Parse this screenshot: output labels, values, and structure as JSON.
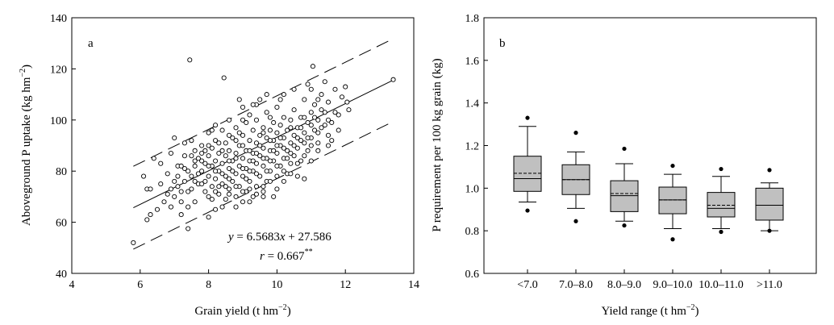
{
  "chart_data": [
    {
      "panel": "a",
      "type": "scatter",
      "xlabel": "Grain yield (t hm",
      "xlabel_sup": "−2",
      "xlabel_end": ")",
      "ylabel": "Aboveground P uptake (kg hm",
      "ylabel_sup": "−2",
      "ylabel_end": ")",
      "xlim": [
        4,
        14
      ],
      "ylim": [
        40,
        140
      ],
      "xticks": [
        "4",
        "6",
        "8",
        "10",
        "12",
        "14"
      ],
      "yticks": [
        "40",
        "60",
        "80",
        "100",
        "120",
        "140"
      ],
      "equation_y": "y",
      "equation_eq": " = 6.5683",
      "equation_x": "x",
      "equation_rest": " + 27.586",
      "r_label": "r",
      "r_value": " = 0.667",
      "r_sig": "**",
      "regression": {
        "slope": 6.5683,
        "intercept": 27.586,
        "x_range": [
          5.8,
          13.4
        ]
      },
      "prediction_band": {
        "offset": 16.2,
        "x_range": [
          5.8,
          13.4
        ]
      },
      "points": [
        [
          5.8,
          52
        ],
        [
          7.45,
          123.5
        ],
        [
          8.45,
          116.5
        ],
        [
          13.4,
          115.8
        ],
        [
          7.4,
          57.5
        ],
        [
          11.05,
          121
        ],
        [
          11.4,
          115
        ],
        [
          12.05,
          107
        ],
        [
          12.1,
          104
        ],
        [
          10.8,
          77
        ],
        [
          6.1,
          78
        ],
        [
          6.2,
          61
        ],
        [
          6.3,
          63
        ],
        [
          6.2,
          73
        ],
        [
          6.3,
          73
        ],
        [
          6.6,
          75
        ],
        [
          6.9,
          73
        ],
        [
          7.0,
          70
        ],
        [
          7.0,
          93
        ],
        [
          6.4,
          85
        ],
        [
          6.5,
          65
        ],
        [
          6.7,
          68
        ],
        [
          6.9,
          66
        ],
        [
          6.8,
          79
        ],
        [
          7.1,
          74
        ],
        [
          7.2,
          68
        ],
        [
          7.2,
          72
        ],
        [
          7.3,
          76
        ],
        [
          7.3,
          81
        ],
        [
          7.4,
          72
        ],
        [
          7.5,
          78
        ],
        [
          7.6,
          82
        ],
        [
          7.6,
          88
        ],
        [
          7.7,
          75
        ],
        [
          7.7,
          85
        ],
        [
          7.8,
          80
        ],
        [
          7.8,
          90
        ],
        [
          7.9,
          72
        ],
        [
          7.9,
          83
        ],
        [
          8.0,
          70
        ],
        [
          8.0,
          78
        ],
        [
          8.0,
          86
        ],
        [
          8.0,
          95
        ],
        [
          8.1,
          74
        ],
        [
          8.1,
          82
        ],
        [
          8.1,
          89
        ],
        [
          8.2,
          65
        ],
        [
          8.2,
          77
        ],
        [
          8.2,
          84
        ],
        [
          8.2,
          92
        ],
        [
          8.3,
          71
        ],
        [
          8.3,
          80
        ],
        [
          8.3,
          87
        ],
        [
          8.4,
          75
        ],
        [
          8.4,
          83
        ],
        [
          8.4,
          96
        ],
        [
          8.5,
          69
        ],
        [
          8.5,
          78
        ],
        [
          8.5,
          86
        ],
        [
          8.5,
          91
        ],
        [
          8.6,
          73
        ],
        [
          8.6,
          81
        ],
        [
          8.6,
          88
        ],
        [
          8.6,
          100
        ],
        [
          8.7,
          76
        ],
        [
          8.7,
          84
        ],
        [
          8.7,
          93
        ],
        [
          8.8,
          70
        ],
        [
          8.8,
          79
        ],
        [
          8.8,
          87
        ],
        [
          8.8,
          97
        ],
        [
          8.9,
          74
        ],
        [
          8.9,
          82
        ],
        [
          8.9,
          90
        ],
        [
          9.0,
          68
        ],
        [
          9.0,
          78
        ],
        [
          9.0,
          85
        ],
        [
          9.0,
          94
        ],
        [
          9.0,
          105
        ],
        [
          9.1,
          72
        ],
        [
          9.1,
          81
        ],
        [
          9.1,
          88
        ],
        [
          9.1,
          99
        ],
        [
          9.2,
          76
        ],
        [
          9.2,
          84
        ],
        [
          9.2,
          92
        ],
        [
          9.2,
          102
        ],
        [
          9.3,
          70
        ],
        [
          9.3,
          80
        ],
        [
          9.3,
          87
        ],
        [
          9.3,
          96
        ],
        [
          9.4,
          74
        ],
        [
          9.4,
          83
        ],
        [
          9.4,
          91
        ],
        [
          9.4,
          100
        ],
        [
          9.5,
          78
        ],
        [
          9.5,
          86
        ],
        [
          9.5,
          94
        ],
        [
          9.5,
          108
        ],
        [
          9.6,
          72
        ],
        [
          9.6,
          82
        ],
        [
          9.6,
          89
        ],
        [
          9.6,
          97
        ],
        [
          9.7,
          76
        ],
        [
          9.7,
          85
        ],
        [
          9.7,
          93
        ],
        [
          9.7,
          103
        ],
        [
          9.8,
          80
        ],
        [
          9.8,
          88
        ],
        [
          9.8,
          96
        ],
        [
          9.9,
          70
        ],
        [
          9.9,
          84
        ],
        [
          9.9,
          92
        ],
        [
          9.9,
          99
        ],
        [
          10.0,
          78
        ],
        [
          10.0,
          87
        ],
        [
          10.0,
          95
        ],
        [
          10.0,
          105
        ],
        [
          10.1,
          82
        ],
        [
          10.1,
          90
        ],
        [
          10.1,
          98
        ],
        [
          10.2,
          85
        ],
        [
          10.2,
          93
        ],
        [
          10.2,
          101
        ],
        [
          10.2,
          110
        ],
        [
          10.3,
          79
        ],
        [
          10.3,
          88
        ],
        [
          10.3,
          96
        ],
        [
          10.4,
          83
        ],
        [
          10.4,
          91
        ],
        [
          10.4,
          100
        ],
        [
          10.5,
          86
        ],
        [
          10.5,
          94
        ],
        [
          10.5,
          104
        ],
        [
          10.6,
          89
        ],
        [
          10.6,
          97
        ],
        [
          10.7,
          84
        ],
        [
          10.7,
          92
        ],
        [
          10.7,
          101
        ],
        [
          10.8,
          95
        ],
        [
          10.8,
          108
        ],
        [
          10.9,
          88
        ],
        [
          10.9,
          99
        ],
        [
          11.0,
          93
        ],
        [
          11.0,
          103
        ],
        [
          11.0,
          112
        ],
        [
          11.1,
          96
        ],
        [
          11.1,
          106
        ],
        [
          11.2,
          91
        ],
        [
          11.2,
          100
        ],
        [
          11.3,
          97
        ],
        [
          11.3,
          110
        ],
        [
          11.4,
          103
        ],
        [
          11.5,
          94
        ],
        [
          11.5,
          107
        ],
        [
          11.6,
          99
        ],
        [
          11.7,
          112
        ],
        [
          11.8,
          102
        ],
        [
          7.5,
          92
        ],
        [
          7.6,
          68
        ],
        [
          7.8,
          84
        ],
        [
          8.0,
          62
        ],
        [
          8.2,
          98
        ],
        [
          8.4,
          66
        ],
        [
          8.6,
          94
        ],
        [
          8.8,
          66
        ],
        [
          9.0,
          100
        ],
        [
          9.2,
          68
        ],
        [
          9.4,
          106
        ],
        [
          9.6,
          70
        ],
        [
          9.8,
          101
        ],
        [
          6.8,
          71
        ],
        [
          7.1,
          78
        ],
        [
          7.3,
          86
        ],
        [
          7.5,
          73
        ],
        [
          7.7,
          79
        ],
        [
          7.9,
          88
        ],
        [
          8.1,
          69
        ],
        [
          8.3,
          91
        ],
        [
          8.5,
          74
        ],
        [
          8.7,
          80
        ],
        [
          8.9,
          95
        ],
        [
          9.1,
          77
        ],
        [
          9.3,
          84
        ],
        [
          9.5,
          90
        ],
        [
          9.7,
          80
        ],
        [
          9.9,
          88
        ],
        [
          10.1,
          93
        ],
        [
          10.3,
          85
        ],
        [
          10.5,
          90
        ],
        [
          10.7,
          97
        ],
        [
          10.9,
          93
        ],
        [
          11.1,
          101
        ],
        [
          11.3,
          104
        ],
        [
          11.6,
          92
        ],
        [
          11.9,
          109
        ],
        [
          12.0,
          113
        ],
        [
          7.2,
          63
        ],
        [
          7.4,
          66
        ],
        [
          7.6,
          84
        ],
        [
          7.9,
          76
        ],
        [
          8.1,
          96
        ],
        [
          8.3,
          74
        ],
        [
          8.6,
          77
        ],
        [
          8.8,
          92
        ],
        [
          9.0,
          81
        ],
        [
          9.2,
          88
        ],
        [
          9.4,
          79
        ],
        [
          9.6,
          95
        ],
        [
          9.8,
          84
        ],
        [
          10.0,
          90
        ],
        [
          10.2,
          80
        ],
        [
          10.4,
          97
        ],
        [
          10.6,
          83
        ],
        [
          10.8,
          101
        ],
        [
          11.0,
          90
        ],
        [
          11.2,
          108
        ],
        [
          11.4,
          98
        ],
        [
          11.7,
          103
        ],
        [
          6.6,
          83
        ],
        [
          6.9,
          87
        ],
        [
          7.1,
          82
        ],
        [
          7.3,
          91
        ],
        [
          7.5,
          86
        ],
        [
          7.8,
          75
        ],
        [
          8.0,
          90
        ],
        [
          8.2,
          72
        ],
        [
          8.4,
          88
        ],
        [
          8.6,
          84
        ],
        [
          8.8,
          74
        ],
        [
          9.0,
          90
        ],
        [
          9.2,
          80
        ],
        [
          9.4,
          87
        ],
        [
          9.6,
          85
        ],
        [
          9.8,
          92
        ],
        [
          10.0,
          82
        ],
        [
          10.2,
          89
        ],
        [
          10.4,
          87
        ],
        [
          10.6,
          93
        ],
        [
          10.8,
          91
        ],
        [
          11.0,
          98
        ],
        [
          11.2,
          95
        ],
        [
          11.5,
          100
        ],
        [
          8.9,
          108
        ],
        [
          9.3,
          106
        ],
        [
          9.7,
          110
        ],
        [
          10.1,
          108
        ],
        [
          10.5,
          112
        ],
        [
          10.9,
          114
        ],
        [
          7.0,
          76
        ],
        [
          7.2,
          82
        ],
        [
          7.4,
          80
        ],
        [
          7.6,
          76
        ],
        [
          7.8,
          87
        ],
        [
          8.0,
          82
        ],
        [
          8.2,
          80
        ],
        [
          8.4,
          79
        ],
        [
          8.6,
          71
        ],
        [
          8.8,
          85
        ],
        [
          9.0,
          72
        ],
        [
          9.2,
          73
        ],
        [
          9.4,
          71
        ],
        [
          9.6,
          74
        ],
        [
          9.8,
          76
        ],
        [
          10.0,
          73
        ],
        [
          10.2,
          76
        ],
        [
          10.4,
          79
        ],
        [
          10.6,
          78
        ],
        [
          10.8,
          86
        ],
        [
          11.0,
          84
        ],
        [
          11.2,
          88
        ],
        [
          11.5,
          90
        ],
        [
          11.8,
          96
        ]
      ]
    },
    {
      "panel": "b",
      "type": "box",
      "xlabel": "Yield range (t hm",
      "xlabel_sup": "−2",
      "xlabel_end": ")",
      "ylabel": "P requirement per 100 kg grain (kg)",
      "ylim": [
        0.6,
        1.8
      ],
      "yticks": [
        "0.6",
        "0.8",
        "1.0",
        "1.2",
        "1.4",
        "1.6",
        "1.8"
      ],
      "categories": [
        "<7.0",
        "7.0–8.0",
        "8.0–9.0",
        "9.0–10.0",
        "10.0–11.0",
        ">11.0"
      ],
      "boxes": [
        {
          "whisker_low": 0.935,
          "q1": 0.985,
          "median": 1.045,
          "mean": 1.07,
          "q3": 1.15,
          "whisker_high": 1.29,
          "outliers": [
            0.895,
            1.33
          ]
        },
        {
          "whisker_low": 0.905,
          "q1": 0.97,
          "median": 1.04,
          "mean": 1.04,
          "q3": 1.11,
          "whisker_high": 1.17,
          "outliers": [
            0.845,
            1.26
          ]
        },
        {
          "whisker_low": 0.845,
          "q1": 0.89,
          "median": 0.965,
          "mean": 0.975,
          "q3": 1.035,
          "whisker_high": 1.115,
          "outliers": [
            0.825,
            1.185
          ]
        },
        {
          "whisker_low": 0.81,
          "q1": 0.88,
          "median": 0.945,
          "mean": 0.945,
          "q3": 1.005,
          "whisker_high": 1.065,
          "outliers": [
            0.76,
            1.105
          ]
        },
        {
          "whisker_low": 0.81,
          "q1": 0.865,
          "median": 0.905,
          "mean": 0.92,
          "q3": 0.98,
          "whisker_high": 1.055,
          "outliers": [
            0.795,
            1.09
          ]
        },
        {
          "whisker_low": 0.8,
          "q1": 0.85,
          "median": 0.92,
          "mean": 0.92,
          "q3": 1.0,
          "whisker_high": 1.025,
          "outliers": [
            0.8,
            1.085
          ]
        }
      ],
      "box_fill": "#c0c0c0"
    }
  ]
}
